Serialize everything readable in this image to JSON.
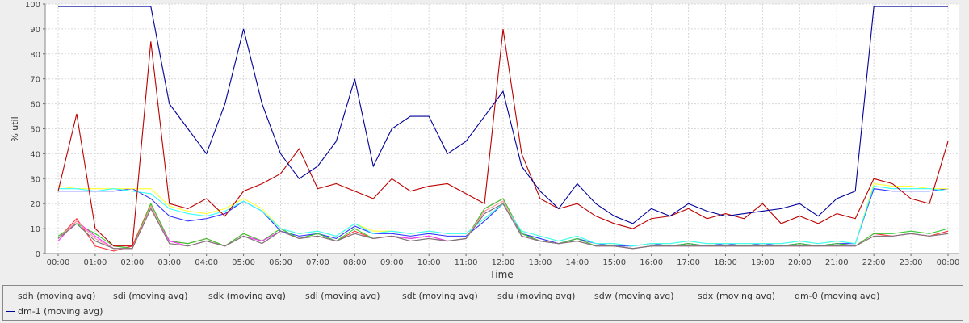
{
  "chart_data": {
    "type": "line",
    "ylabel": "% util",
    "xlabel": "Time",
    "ylim": [
      0,
      100
    ],
    "yticks": [
      0,
      10,
      20,
      30,
      40,
      50,
      60,
      70,
      80,
      90,
      100
    ],
    "xticks": [
      "00:00",
      "01:00",
      "02:00",
      "03:00",
      "04:00",
      "05:00",
      "06:00",
      "07:00",
      "08:00",
      "09:00",
      "10:00",
      "11:00",
      "12:00",
      "13:00",
      "14:00",
      "15:00",
      "16:00",
      "17:00",
      "18:00",
      "19:00",
      "20:00",
      "21:00",
      "22:00",
      "23:00",
      "00:00"
    ],
    "grid": true,
    "legend": "bottom",
    "x_hours": [
      0,
      0.5,
      1,
      1.5,
      2,
      2.5,
      3,
      3.5,
      4,
      4.5,
      5,
      5.5,
      6,
      6.5,
      7,
      7.5,
      8,
      8.5,
      9,
      9.5,
      10,
      10.5,
      11,
      11.5,
      12,
      12.5,
      13,
      13.5,
      14,
      14.5,
      15,
      15.5,
      16,
      16.5,
      17,
      17.5,
      18,
      18.5,
      19,
      19.5,
      20,
      20.5,
      21,
      21.5,
      22,
      22.5,
      23,
      23.5,
      24
    ],
    "series": [
      {
        "name": "sdh (moving avg)",
        "color": "#ff3333",
        "values": [
          6,
          14,
          3,
          1,
          3,
          20,
          5,
          4,
          6,
          3,
          8,
          5,
          10,
          6,
          8,
          5,
          9,
          6,
          7,
          6,
          7,
          5,
          6,
          18,
          22,
          8,
          5,
          4,
          6,
          3,
          3,
          2,
          3,
          3,
          4,
          3,
          3,
          3,
          3,
          3,
          4,
          3,
          4,
          3,
          8,
          7,
          8,
          7,
          9
        ]
      },
      {
        "name": "sdi (moving avg)",
        "color": "#3333ff",
        "values": [
          25,
          25,
          25,
          25,
          26,
          22,
          15,
          13,
          14,
          16,
          21,
          17,
          9,
          7,
          8,
          6,
          11,
          8,
          8,
          7,
          8,
          7,
          7,
          13,
          20,
          8,
          6,
          4,
          6,
          4,
          3,
          3,
          4,
          3,
          4,
          3,
          4,
          3,
          4,
          3,
          4,
          3,
          4,
          4,
          26,
          25,
          25,
          25,
          26
        ]
      },
      {
        "name": "sdk (moving avg)",
        "color": "#33cc33",
        "values": [
          7,
          12,
          8,
          3,
          2,
          20,
          5,
          4,
          6,
          3,
          8,
          5,
          10,
          6,
          8,
          5,
          10,
          6,
          7,
          6,
          7,
          5,
          6,
          18,
          22,
          8,
          5,
          4,
          6,
          3,
          3,
          2,
          3,
          3,
          4,
          3,
          3,
          3,
          3,
          3,
          4,
          3,
          4,
          3,
          8,
          8,
          9,
          8,
          10
        ]
      },
      {
        "name": "sdl (moving avg)",
        "color": "#ffff33",
        "values": [
          27,
          26,
          26,
          26,
          26,
          26,
          19,
          17,
          16,
          18,
          22,
          18,
          10,
          8,
          9,
          7,
          12,
          9,
          9,
          8,
          9,
          8,
          8,
          14,
          20,
          9,
          7,
          5,
          7,
          4,
          4,
          3,
          4,
          4,
          5,
          4,
          4,
          4,
          4,
          4,
          5,
          4,
          5,
          4,
          28,
          27,
          27,
          26,
          26
        ]
      },
      {
        "name": "sdt (moving avg)",
        "color": "#ff33ff",
        "values": [
          5,
          13,
          7,
          2,
          2,
          18,
          5,
          3,
          5,
          3,
          7,
          5,
          9,
          6,
          7,
          5,
          8,
          6,
          7,
          6,
          7,
          5,
          6,
          16,
          20,
          7,
          5,
          4,
          5,
          3,
          3,
          2,
          3,
          3,
          3,
          3,
          3,
          3,
          3,
          3,
          3,
          3,
          3,
          3,
          7,
          7,
          8,
          7,
          8
        ]
      },
      {
        "name": "sdu (moving avg)",
        "color": "#33ffff",
        "values": [
          26,
          26,
          25,
          26,
          25,
          24,
          18,
          16,
          15,
          17,
          21,
          17,
          10,
          8,
          9,
          7,
          12,
          8,
          9,
          8,
          9,
          8,
          8,
          14,
          20,
          9,
          7,
          5,
          7,
          4,
          4,
          3,
          4,
          4,
          5,
          4,
          4,
          4,
          4,
          4,
          5,
          4,
          5,
          4,
          27,
          26,
          26,
          26,
          25
        ]
      },
      {
        "name": "sdw (moving avg)",
        "color": "#ff9999",
        "values": [
          6,
          13,
          6,
          2,
          2,
          19,
          4,
          3,
          5,
          3,
          7,
          4,
          9,
          6,
          7,
          5,
          8,
          6,
          7,
          5,
          6,
          5,
          6,
          17,
          21,
          7,
          5,
          4,
          5,
          3,
          3,
          2,
          3,
          3,
          3,
          3,
          3,
          3,
          3,
          3,
          3,
          3,
          3,
          3,
          7,
          7,
          8,
          7,
          8
        ]
      },
      {
        "name": "sdx (moving avg)",
        "color": "#777777",
        "values": [
          6,
          12,
          5,
          2,
          2,
          18,
          4,
          3,
          5,
          3,
          7,
          4,
          9,
          6,
          7,
          5,
          8,
          6,
          7,
          5,
          6,
          5,
          6,
          16,
          20,
          7,
          5,
          4,
          5,
          3,
          3,
          2,
          3,
          3,
          3,
          3,
          3,
          3,
          3,
          3,
          3,
          3,
          3,
          3,
          7,
          7,
          8,
          7,
          8
        ]
      },
      {
        "name": "dm-0 (moving avg)",
        "color": "#bb0000",
        "values": [
          25,
          56,
          10,
          3,
          3,
          85,
          20,
          18,
          22,
          15,
          25,
          28,
          32,
          42,
          26,
          28,
          25,
          22,
          30,
          25,
          27,
          28,
          24,
          20,
          90,
          40,
          22,
          18,
          20,
          15,
          12,
          10,
          14,
          15,
          18,
          14,
          16,
          14,
          20,
          12,
          15,
          12,
          16,
          14,
          30,
          28,
          22,
          20,
          45
        ]
      },
      {
        "name": "dm-1 (moving avg)",
        "color": "#000099",
        "values": [
          99,
          99,
          99,
          99,
          99,
          99,
          60,
          50,
          40,
          60,
          90,
          60,
          40,
          30,
          35,
          45,
          70,
          35,
          50,
          55,
          55,
          40,
          45,
          55,
          65,
          35,
          25,
          18,
          28,
          20,
          15,
          12,
          18,
          15,
          20,
          17,
          15,
          16,
          17,
          18,
          20,
          15,
          22,
          25,
          99,
          99,
          99,
          99,
          99
        ]
      }
    ]
  }
}
